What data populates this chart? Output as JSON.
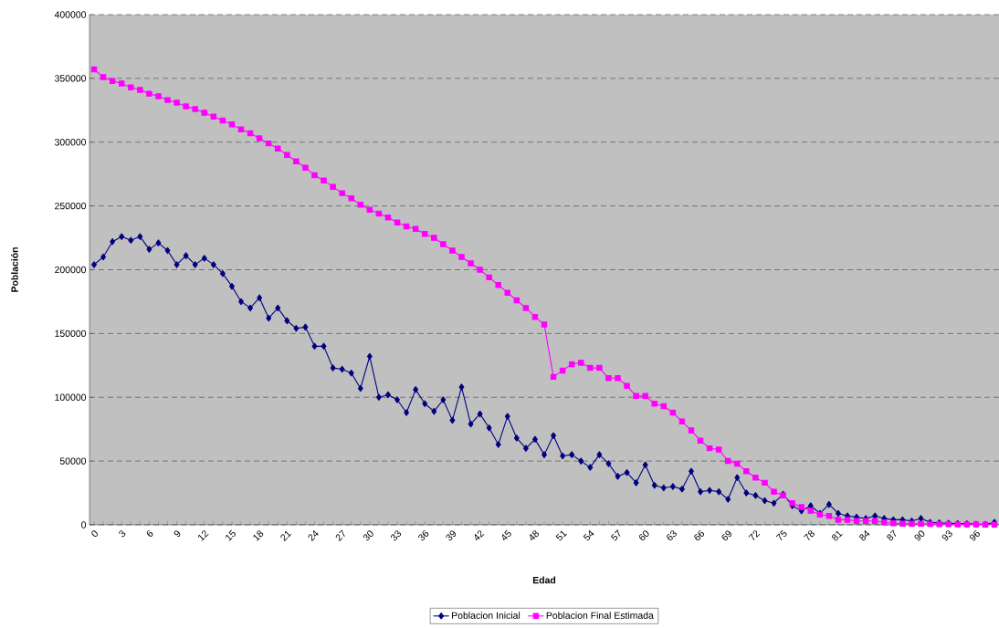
{
  "chart_data": {
    "type": "line",
    "xlabel": "Edad",
    "ylabel": "Población",
    "categories": [
      "0",
      null,
      null,
      "3",
      null,
      null,
      "6",
      null,
      null,
      "9",
      null,
      null,
      "12",
      null,
      null,
      "15",
      null,
      null,
      "18",
      null,
      null,
      "21",
      null,
      null,
      "24",
      null,
      null,
      "27",
      null,
      null,
      "30",
      null,
      null,
      "33",
      null,
      null,
      "36",
      null,
      null,
      "39",
      null,
      null,
      "42",
      null,
      null,
      "45",
      null,
      null,
      "48",
      null,
      null,
      "51",
      null,
      null,
      "54",
      null,
      null,
      "57",
      null,
      null,
      "60",
      null,
      null,
      "63",
      null,
      null,
      "66",
      null,
      null,
      "69",
      null,
      null,
      "72",
      null,
      null,
      "75",
      null,
      null,
      "78",
      null,
      null,
      "81",
      null,
      null,
      "84",
      null,
      null,
      "87",
      null,
      null,
      "90",
      null,
      null,
      "93",
      null,
      null,
      "96",
      null,
      null
    ],
    "series": [
      {
        "name": "Poblacion Inicial",
        "color": "#000080",
        "marker": "diamond",
        "values": [
          204000,
          210000,
          222000,
          226000,
          223000,
          226000,
          216000,
          221000,
          215000,
          204000,
          211000,
          204000,
          209000,
          204000,
          197000,
          187000,
          175000,
          170000,
          178000,
          162000,
          170000,
          160000,
          154000,
          155000,
          140000,
          140000,
          123000,
          122000,
          119000,
          107000,
          132000,
          100000,
          102000,
          98000,
          88000,
          106000,
          95000,
          89000,
          98000,
          82000,
          108000,
          79000,
          87000,
          76000,
          63000,
          85000,
          68000,
          60000,
          67000,
          55000,
          70000,
          54000,
          55000,
          50000,
          45000,
          55000,
          48000,
          38000,
          41000,
          33000,
          47000,
          31000,
          29000,
          30000,
          28000,
          42000,
          26000,
          27000,
          26000,
          20000,
          37000,
          25000,
          23000,
          19000,
          17000,
          24000,
          15000,
          11000,
          15000,
          9000,
          16000,
          9000,
          7000,
          6000,
          5000,
          7000,
          5000,
          4000,
          4000,
          3000,
          5000,
          2000,
          1500,
          1200,
          1000,
          800,
          600,
          400,
          2000
        ]
      },
      {
        "name": "Poblacion Final Estimada",
        "color": "#ff00ff",
        "marker": "square",
        "values": [
          357000,
          351000,
          348000,
          346000,
          343000,
          341000,
          338000,
          336000,
          333000,
          331000,
          328000,
          326000,
          323000,
          320000,
          317000,
          314000,
          310000,
          307000,
          303000,
          299000,
          295000,
          290000,
          285000,
          280000,
          274000,
          270000,
          265000,
          260000,
          256000,
          251000,
          247000,
          244000,
          241000,
          237000,
          234000,
          232000,
          228000,
          225000,
          220000,
          215000,
          210000,
          205000,
          200000,
          194000,
          188000,
          182000,
          176000,
          170000,
          163000,
          157000,
          116000,
          121000,
          126000,
          127000,
          123000,
          123000,
          115000,
          115000,
          109000,
          101000,
          101000,
          95000,
          93000,
          88000,
          81000,
          74000,
          66000,
          60000,
          59000,
          50000,
          48000,
          42000,
          37000,
          33000,
          26000,
          23000,
          17000,
          14000,
          11000,
          8000,
          7000,
          4000,
          4000,
          3000,
          3000,
          3000,
          2000,
          1200,
          900,
          900,
          800,
          700,
          600,
          500,
          400,
          300,
          300,
          200,
          200
        ]
      }
    ],
    "ylim": [
      0,
      400000
    ],
    "yticks": [
      0,
      50000,
      100000,
      150000,
      200000,
      250000,
      300000,
      350000,
      400000
    ],
    "grid": "y",
    "legend": "bottom",
    "line_style": "solid"
  }
}
